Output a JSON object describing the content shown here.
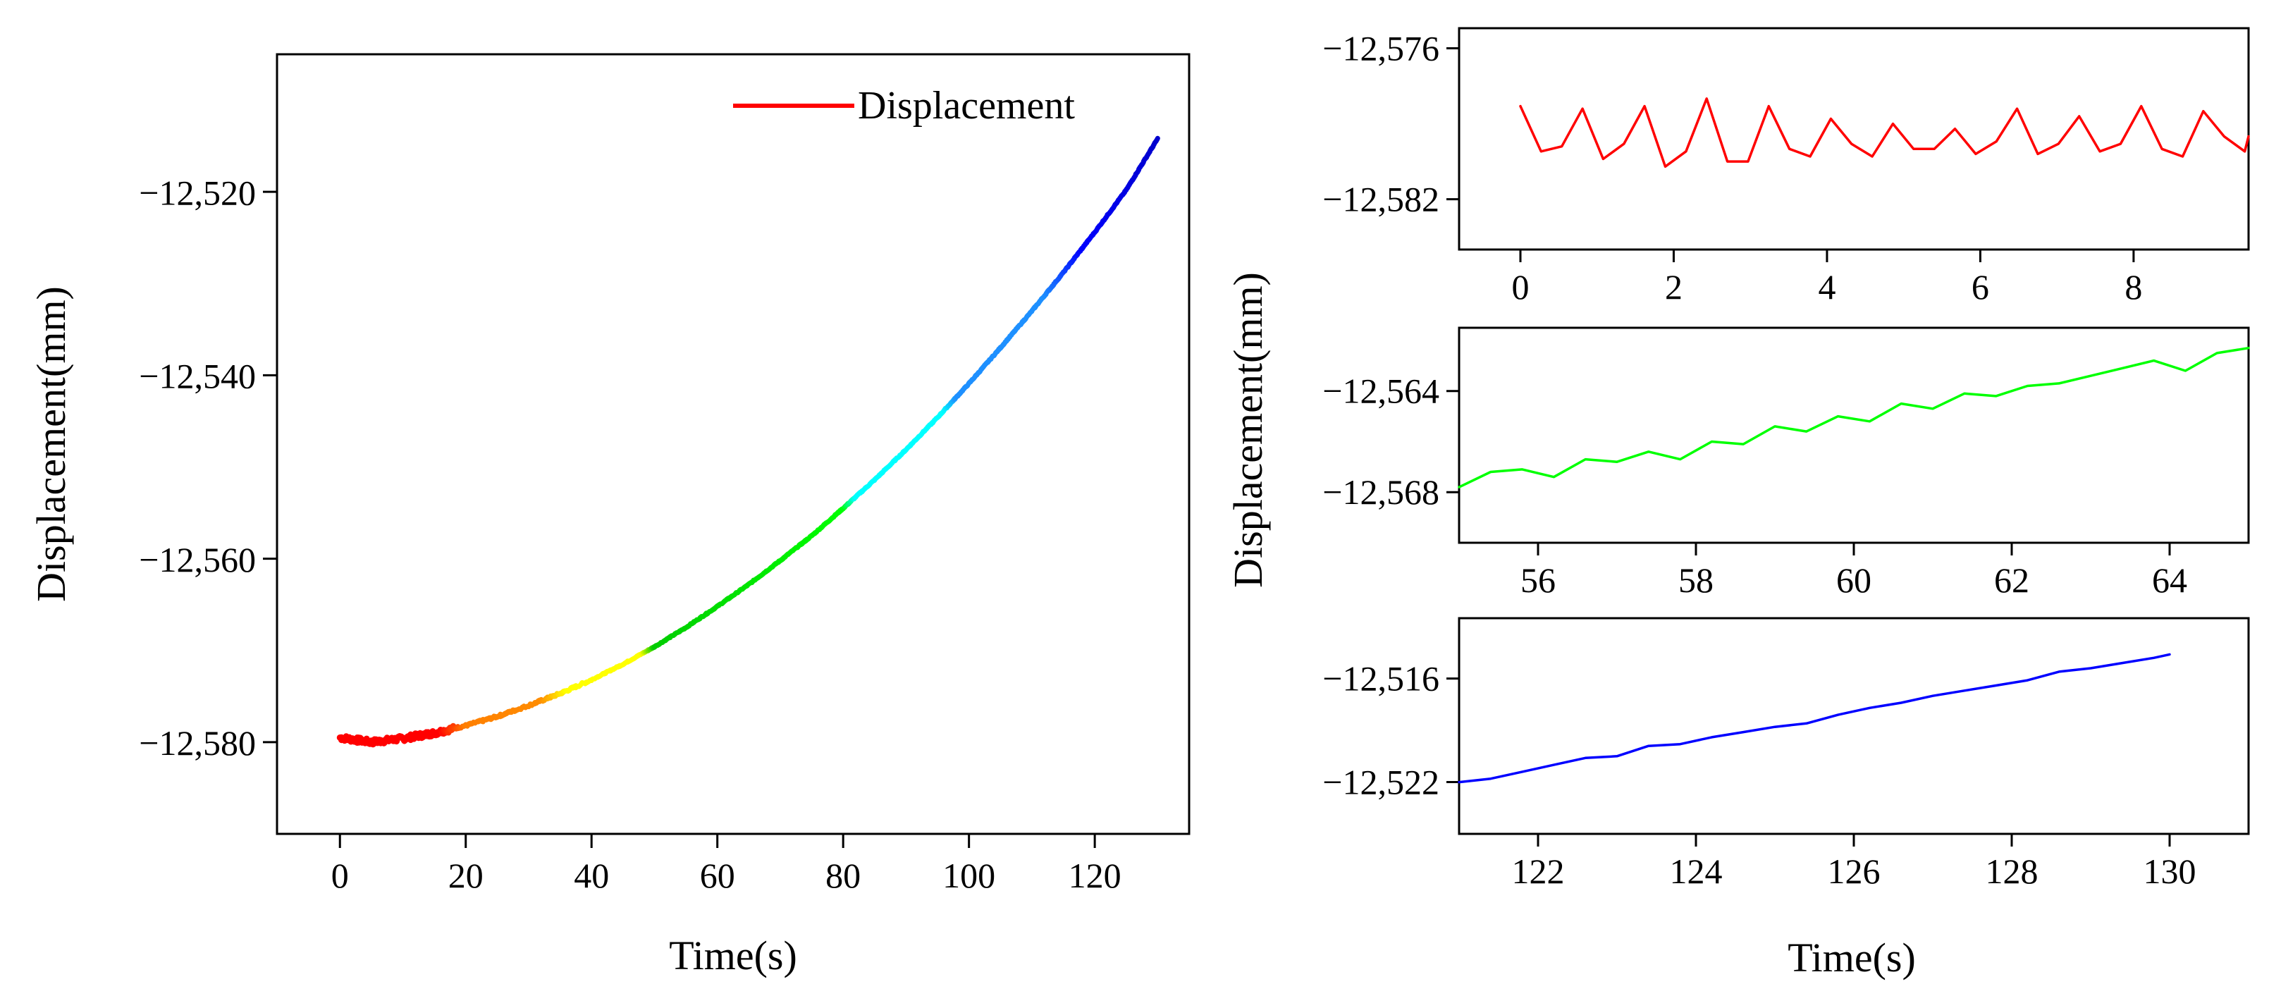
{
  "chart_data": [
    {
      "type": "line",
      "id": "main",
      "xlabel": "Time(s)",
      "ylabel": "Displacement(mm)",
      "xlim": [
        -10,
        135
      ],
      "ylim": [
        -12590,
        -12505
      ],
      "xticks": [
        0,
        20,
        40,
        60,
        80,
        100,
        120
      ],
      "yticks": [
        -12580,
        -12560,
        -12540,
        -12520
      ],
      "xtick_labels": [
        "0",
        "20",
        "40",
        "60",
        "80",
        "100",
        "120"
      ],
      "ytick_labels": [
        "−12,580",
        "−12,560",
        "−12,540",
        "−12,520"
      ],
      "legend": {
        "label": "Displacement",
        "color": "#ff0000",
        "position": "top-right"
      },
      "series": [
        {
          "name": "Displacement",
          "color_note": "line colored along time from red to blue",
          "color_stops": [
            {
              "t": 0,
              "color": "#ff0000"
            },
            {
              "t": 16,
              "color": "#ff0000"
            },
            {
              "t": 20,
              "color": "#ff7f00"
            },
            {
              "t": 32,
              "color": "#ff8c00"
            },
            {
              "t": 36,
              "color": "#ffff00"
            },
            {
              "t": 48,
              "color": "#ffff00"
            },
            {
              "t": 50,
              "color": "#00cc00"
            },
            {
              "t": 80,
              "color": "#00ff00"
            },
            {
              "t": 82,
              "color": "#00ffff"
            },
            {
              "t": 96,
              "color": "#00ffff"
            },
            {
              "t": 98,
              "color": "#1e90ff"
            },
            {
              "t": 112,
              "color": "#1e90ff"
            },
            {
              "t": 118,
              "color": "#0000ff"
            },
            {
              "t": 130,
              "color": "#0000cd"
            }
          ],
          "x": [
            0,
            5,
            10,
            15,
            20,
            25,
            30,
            35,
            40,
            45,
            50,
            55,
            60,
            65,
            70,
            75,
            80,
            85,
            90,
            95,
            100,
            105,
            110,
            115,
            120,
            125,
            130
          ],
          "y": [
            -12579.5,
            -12580,
            -12579.6,
            -12579,
            -12578.2,
            -12577.2,
            -12576,
            -12574.7,
            -12573.2,
            -12571.5,
            -12569.6,
            -12567.5,
            -12565.2,
            -12562.8,
            -12560.2,
            -12557.5,
            -12554.5,
            -12551.4,
            -12548.1,
            -12544.6,
            -12540.9,
            -12537,
            -12533,
            -12528.8,
            -12524.4,
            -12519.8,
            -12514.2
          ]
        }
      ]
    },
    {
      "type": "line",
      "id": "zoom-1",
      "xlim": [
        -0.8,
        9.5
      ],
      "ylim": [
        -12584,
        -12575.2
      ],
      "xticks": [
        0,
        2,
        4,
        6,
        8
      ],
      "yticks": [
        -12582,
        -12576
      ],
      "xtick_labels": [
        "0",
        "2",
        "4",
        "6",
        "8"
      ],
      "ytick_labels": [
        "−12,582",
        "−12,576"
      ],
      "series": [
        {
          "name": "Displacement",
          "color": "#ff0000",
          "x": [
            0,
            0.27,
            0.54,
            0.81,
            1.08,
            1.35,
            1.62,
            1.89,
            2.16,
            2.43,
            2.7,
            2.97,
            3.24,
            3.51,
            3.78,
            4.05,
            4.32,
            4.59,
            4.86,
            5.13,
            5.4,
            5.67,
            5.94,
            6.21,
            6.48,
            6.75,
            7.02,
            7.29,
            7.56,
            7.83,
            8.1,
            8.37,
            8.64,
            8.91,
            9.18,
            9.45,
            9.5
          ],
          "y": [
            -12578.3,
            -12580.1,
            -12579.9,
            -12578.4,
            -12580.4,
            -12579.8,
            -12578.3,
            -12580.7,
            -12580.1,
            -12578,
            -12580.5,
            -12580.5,
            -12578.3,
            -12580,
            -12580.3,
            -12578.8,
            -12579.8,
            -12580.3,
            -12579,
            -12580,
            -12580,
            -12579.2,
            -12580.2,
            -12579.7,
            -12578.4,
            -12580.2,
            -12579.8,
            -12578.7,
            -12580.1,
            -12579.8,
            -12578.3,
            -12580,
            -12580.3,
            -12578.5,
            -12579.5,
            -12580.1,
            -12579.5
          ]
        }
      ]
    },
    {
      "type": "line",
      "id": "zoom-2",
      "xlim": [
        55,
        65
      ],
      "ylim": [
        -12570,
        -12561.5
      ],
      "xticks": [
        56,
        58,
        60,
        62,
        64
      ],
      "yticks": [
        -12568,
        -12564
      ],
      "xtick_labels": [
        "56",
        "58",
        "60",
        "62",
        "64"
      ],
      "ytick_labels": [
        "−12,568",
        "−12,564"
      ],
      "series": [
        {
          "name": "Displacement",
          "color": "#00ff00",
          "x": [
            55,
            55.4,
            55.8,
            56.2,
            56.6,
            57,
            57.4,
            57.8,
            58.2,
            58.6,
            59,
            59.4,
            59.8,
            60.2,
            60.6,
            61,
            61.4,
            61.8,
            62.2,
            62.6,
            63,
            63.4,
            63.8,
            64.2,
            64.6,
            65
          ],
          "y": [
            -12567.8,
            -12567.2,
            -12567.1,
            -12567.4,
            -12566.7,
            -12566.8,
            -12566.4,
            -12566.7,
            -12566,
            -12566.1,
            -12565.4,
            -12565.6,
            -12565,
            -12565.2,
            -12564.5,
            -12564.7,
            -12564.1,
            -12564.2,
            -12563.8,
            -12563.7,
            -12563.4,
            -12563.1,
            -12562.8,
            -12563.2,
            -12562.5,
            -12562.3
          ]
        }
      ]
    },
    {
      "type": "line",
      "id": "zoom-3",
      "xlim": [
        121,
        131
      ],
      "ylim": [
        -12525,
        -12512.5
      ],
      "xticks": [
        122,
        124,
        126,
        128,
        130
      ],
      "yticks": [
        -12522,
        -12516
      ],
      "xtick_labels": [
        "122",
        "124",
        "126",
        "128",
        "130"
      ],
      "ytick_labels": [
        "−12,522",
        "−12,516"
      ],
      "series": [
        {
          "name": "Displacement",
          "color": "#0000ff",
          "x": [
            121,
            121.4,
            121.8,
            122.2,
            122.6,
            123,
            123.4,
            123.8,
            124.2,
            124.6,
            125,
            125.4,
            125.8,
            126.2,
            126.6,
            127,
            127.4,
            127.8,
            128.2,
            128.6,
            129,
            129.4,
            129.8,
            130
          ],
          "y": [
            -12522,
            -12521.8,
            -12521.4,
            -12521,
            -12520.6,
            -12520.5,
            -12519.9,
            -12519.8,
            -12519.4,
            -12519.1,
            -12518.8,
            -12518.6,
            -12518.1,
            -12517.7,
            -12517.4,
            -12517,
            -12516.7,
            -12516.4,
            -12516.1,
            -12515.6,
            -12515.4,
            -12515.1,
            -12514.8,
            -12514.6
          ]
        }
      ]
    }
  ],
  "right_panel": {
    "xlabel": "Time(s)",
    "ylabel": "Displacement(mm)"
  }
}
